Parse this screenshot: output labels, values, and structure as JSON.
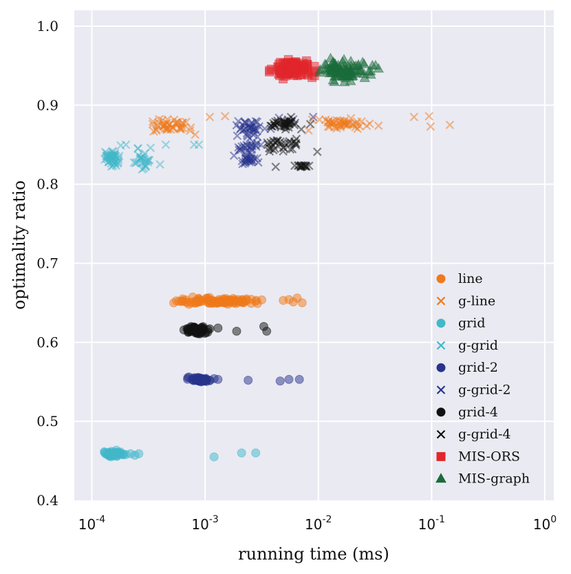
{
  "chart_data": {
    "type": "scatter",
    "title": "",
    "xlabel": "running time (ms)",
    "ylabel": "optimality ratio",
    "xscale": "log",
    "xlim": [
      7e-05,
      1.2
    ],
    "ylim": [
      0.4,
      1.02
    ],
    "grid": true,
    "legend_position": "lower-right",
    "x_ticks": [
      {
        "value": 0.0001,
        "base": "10",
        "exp": "-4"
      },
      {
        "value": 0.001,
        "base": "10",
        "exp": "-3"
      },
      {
        "value": 0.01,
        "base": "10",
        "exp": "-2"
      },
      {
        "value": 0.1,
        "base": "10",
        "exp": "-1"
      },
      {
        "value": 1,
        "base": "10",
        "exp": "0"
      }
    ],
    "y_ticks": [
      {
        "value": 0.4,
        "label": "0.4"
      },
      {
        "value": 0.5,
        "label": "0.5"
      },
      {
        "value": 0.6,
        "label": "0.6"
      },
      {
        "value": 0.7,
        "label": "0.7"
      },
      {
        "value": 0.8,
        "label": "0.8"
      },
      {
        "value": 0.9,
        "label": "0.9"
      },
      {
        "value": 1.0,
        "label": "1.0"
      }
    ],
    "series": [
      {
        "name": "line",
        "marker": "circle",
        "color": "#f07a1a",
        "clusters": [
          {
            "x_range": [
              0.0004,
              0.0035
            ],
            "y": 0.652,
            "y_jitter": 0.004,
            "n": 110
          }
        ],
        "points": [
          {
            "x": 0.0029,
            "y": 0.649
          },
          {
            "x": 0.0049,
            "y": 0.653
          },
          {
            "x": 0.0055,
            "y": 0.654
          },
          {
            "x": 0.0065,
            "y": 0.656
          },
          {
            "x": 0.0072,
            "y": 0.65
          },
          {
            "x": 0.006,
            "y": 0.651
          }
        ]
      },
      {
        "name": "g-line",
        "marker": "x",
        "color": "#f07a1a",
        "clusters": [
          {
            "x_range": [
              0.00032,
              0.0009
            ],
            "y": 0.874,
            "y_jitter": 0.009,
            "n": 45
          },
          {
            "x_range": [
              0.0085,
              0.03
            ],
            "y": 0.877,
            "y_jitter": 0.008,
            "n": 45
          }
        ],
        "points": [
          {
            "x": 0.0011,
            "y": 0.885
          },
          {
            "x": 0.0015,
            "y": 0.886
          },
          {
            "x": 0.0082,
            "y": 0.868
          },
          {
            "x": 0.034,
            "y": 0.874
          },
          {
            "x": 0.07,
            "y": 0.885
          },
          {
            "x": 0.095,
            "y": 0.886
          },
          {
            "x": 0.098,
            "y": 0.873
          },
          {
            "x": 0.145,
            "y": 0.875
          }
        ]
      },
      {
        "name": "grid",
        "marker": "circle",
        "color": "#42b8c9",
        "clusters": [
          {
            "x_range": [
              0.000125,
              0.00019
            ],
            "y": 0.459,
            "y_jitter": 0.003,
            "n": 70
          }
        ],
        "points": [
          {
            "x": 0.0002,
            "y": 0.458
          },
          {
            "x": 0.00022,
            "y": 0.459
          },
          {
            "x": 0.00024,
            "y": 0.457
          },
          {
            "x": 0.00026,
            "y": 0.459
          },
          {
            "x": 0.0012,
            "y": 0.455
          },
          {
            "x": 0.0021,
            "y": 0.46
          },
          {
            "x": 0.0028,
            "y": 0.46
          }
        ]
      },
      {
        "name": "g-grid",
        "marker": "x",
        "color": "#42b8c9",
        "clusters": [
          {
            "x_range": [
              0.000125,
              0.00018
            ],
            "y": 0.833,
            "y_jitter": 0.012,
            "n": 45
          },
          {
            "x_range": [
              0.00023,
              0.00035
            ],
            "y": 0.833,
            "y_jitter": 0.012,
            "n": 25
          }
        ],
        "points": [
          {
            "x": 0.00018,
            "y": 0.849
          },
          {
            "x": 0.0002,
            "y": 0.85
          },
          {
            "x": 0.00045,
            "y": 0.85
          },
          {
            "x": 0.0008,
            "y": 0.85
          },
          {
            "x": 0.00088,
            "y": 0.85
          },
          {
            "x": 0.0004,
            "y": 0.825
          },
          {
            "x": 0.00033,
            "y": 0.846
          }
        ]
      },
      {
        "name": "grid-2",
        "marker": "circle",
        "color": "#27348b",
        "clusters": [
          {
            "x_range": [
              0.0007,
              0.0011
            ],
            "y": 0.553,
            "y_jitter": 0.003,
            "n": 70
          }
        ],
        "points": [
          {
            "x": 0.0012,
            "y": 0.554
          },
          {
            "x": 0.0013,
            "y": 0.553
          },
          {
            "x": 0.0024,
            "y": 0.552
          },
          {
            "x": 0.0046,
            "y": 0.551
          },
          {
            "x": 0.0055,
            "y": 0.553
          },
          {
            "x": 0.0068,
            "y": 0.553
          }
        ]
      },
      {
        "name": "g-grid-2",
        "marker": "x",
        "color": "#27348b",
        "clusters": [
          {
            "x_range": [
              0.0018,
              0.0035
            ],
            "y": 0.87,
            "y_jitter": 0.012,
            "n": 35
          },
          {
            "x_range": [
              0.0018,
              0.0033
            ],
            "y": 0.845,
            "y_jitter": 0.012,
            "n": 25
          },
          {
            "x_range": [
              0.0019,
              0.003
            ],
            "y": 0.83,
            "y_jitter": 0.004,
            "n": 20
          }
        ],
        "points": [
          {
            "x": 0.0045,
            "y": 0.884
          },
          {
            "x": 0.006,
            "y": 0.882
          },
          {
            "x": 0.009,
            "y": 0.885
          },
          {
            "x": 0.0038,
            "y": 0.87
          }
        ]
      },
      {
        "name": "grid-4",
        "marker": "circle",
        "color": "#111111",
        "clusters": [
          {
            "x_range": [
              0.00065,
              0.0011
            ],
            "y": 0.615,
            "y_jitter": 0.004,
            "n": 80
          }
        ],
        "points": [
          {
            "x": 0.0011,
            "y": 0.617
          },
          {
            "x": 0.0013,
            "y": 0.618
          },
          {
            "x": 0.0019,
            "y": 0.614
          },
          {
            "x": 0.0033,
            "y": 0.62
          },
          {
            "x": 0.0035,
            "y": 0.614
          }
        ]
      },
      {
        "name": "g-grid-4",
        "marker": "x",
        "color": "#111111",
        "clusters": [
          {
            "x_range": [
              0.0033,
              0.0075
            ],
            "y": 0.876,
            "y_jitter": 0.008,
            "n": 40
          },
          {
            "x_range": [
              0.0033,
              0.0075
            ],
            "y": 0.85,
            "y_jitter": 0.008,
            "n": 30
          },
          {
            "x_range": [
              0.0055,
              0.0095
            ],
            "y": 0.823,
            "y_jitter": 0.002,
            "n": 15
          }
        ],
        "points": [
          {
            "x": 0.0098,
            "y": 0.841
          },
          {
            "x": 0.0085,
            "y": 0.876
          },
          {
            "x": 0.0042,
            "y": 0.822
          }
        ]
      },
      {
        "name": "MIS-ORS",
        "marker": "square",
        "color": "#e1262c",
        "clusters": [
          {
            "x_range": [
              0.0037,
              0.0095
            ],
            "y": 0.946,
            "y_jitter": 0.011,
            "n": 110
          }
        ],
        "points": []
      },
      {
        "name": "MIS-graph",
        "marker": "triangle",
        "color": "#1a6b3a",
        "clusters": [
          {
            "x_range": [
              0.0098,
              0.03
            ],
            "y": 0.944,
            "y_jitter": 0.011,
            "n": 90
          }
        ],
        "points": [
          {
            "x": 0.034,
            "y": 0.946
          },
          {
            "x": 0.032,
            "y": 0.95
          }
        ]
      }
    ]
  }
}
